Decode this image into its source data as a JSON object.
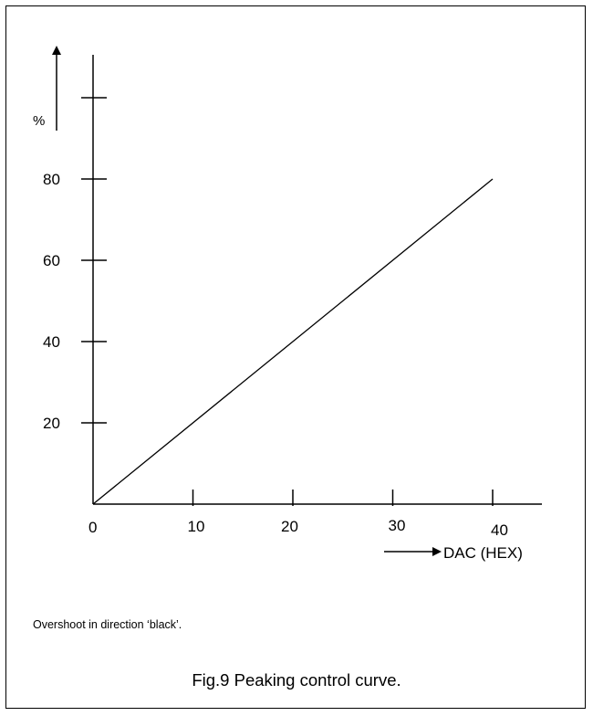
{
  "chart_data": {
    "type": "line",
    "title": "",
    "xlabel": "DAC (HEX)",
    "ylabel": "%",
    "x_ticks": [
      "0",
      "10",
      "20",
      "30",
      "40"
    ],
    "y_ticks": [
      "20",
      "40",
      "60",
      "80"
    ],
    "xlim": [
      0,
      45
    ],
    "ylim": [
      0,
      100
    ],
    "grid": false,
    "series": [
      {
        "x": [
          0,
          40
        ],
        "y": [
          0,
          80
        ]
      }
    ]
  },
  "note": "Overshoot in direction ‘black’.",
  "caption": "Fig.9  Peaking control curve."
}
